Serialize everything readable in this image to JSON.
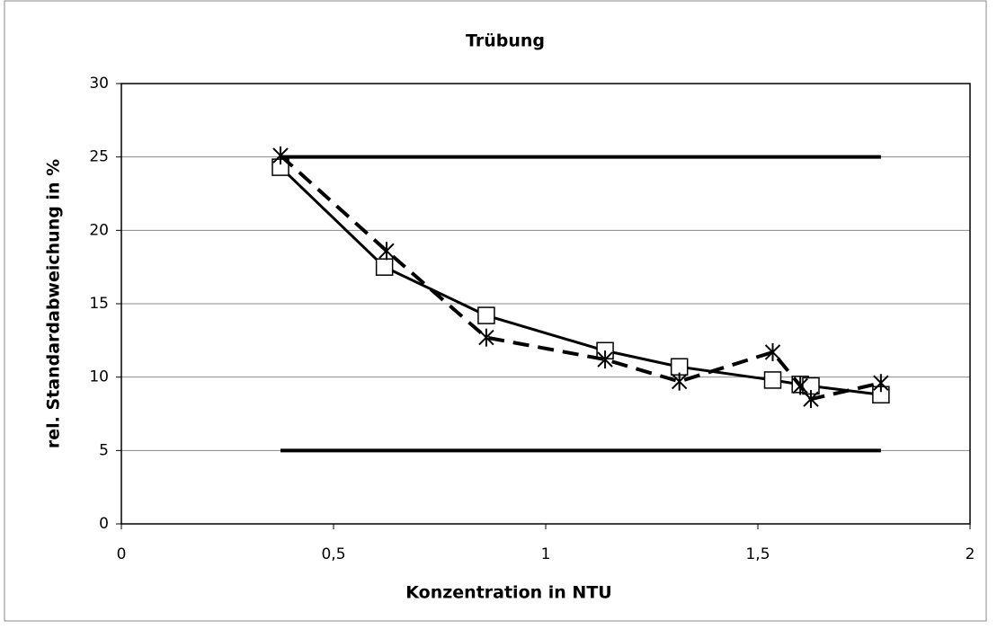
{
  "chart_data": {
    "type": "line",
    "title": "Trübung",
    "x_label": "Konzentration in NTU",
    "y_label": "rel. Standardabweichung in %",
    "xlim": [
      0,
      2
    ],
    "xticks": [
      0,
      {
        "value": 0.5,
        "label": "0,5"
      },
      1,
      {
        "value": 1.5,
        "label": "1,5"
      },
      2
    ],
    "ylim": [
      0,
      30
    ],
    "yticks": [
      0,
      5,
      10,
      15,
      20,
      25,
      30
    ],
    "grid": true,
    "series": [
      {
        "color": "#000000",
        "marker": "square",
        "dash": false,
        "width": 3,
        "x": [
          0.375,
          0.62,
          0.86,
          1.14,
          1.315,
          1.535,
          1.6,
          1.625,
          1.79
        ],
        "values": [
          24.3,
          17.5,
          14.2,
          11.8,
          10.7,
          9.8,
          9.5,
          9.4,
          8.8
        ]
      },
      {
        "color": "#000000",
        "marker": "star",
        "dash": true,
        "width": 4,
        "x": [
          0.375,
          0.625,
          0.86,
          1.14,
          1.315,
          1.535,
          1.6,
          1.625,
          1.79
        ],
        "values": [
          25.1,
          18.6,
          12.7,
          11.2,
          9.7,
          11.7,
          9.4,
          8.5,
          9.6
        ]
      },
      {
        "color": "#000000",
        "marker": "none",
        "dash": false,
        "width": 4,
        "x": [
          0.375,
          1.79
        ],
        "values": [
          25,
          25
        ]
      },
      {
        "color": "#000000",
        "marker": "none",
        "dash": false,
        "width": 4,
        "x": [
          0.375,
          1.79
        ],
        "values": [
          5,
          5
        ]
      }
    ]
  }
}
